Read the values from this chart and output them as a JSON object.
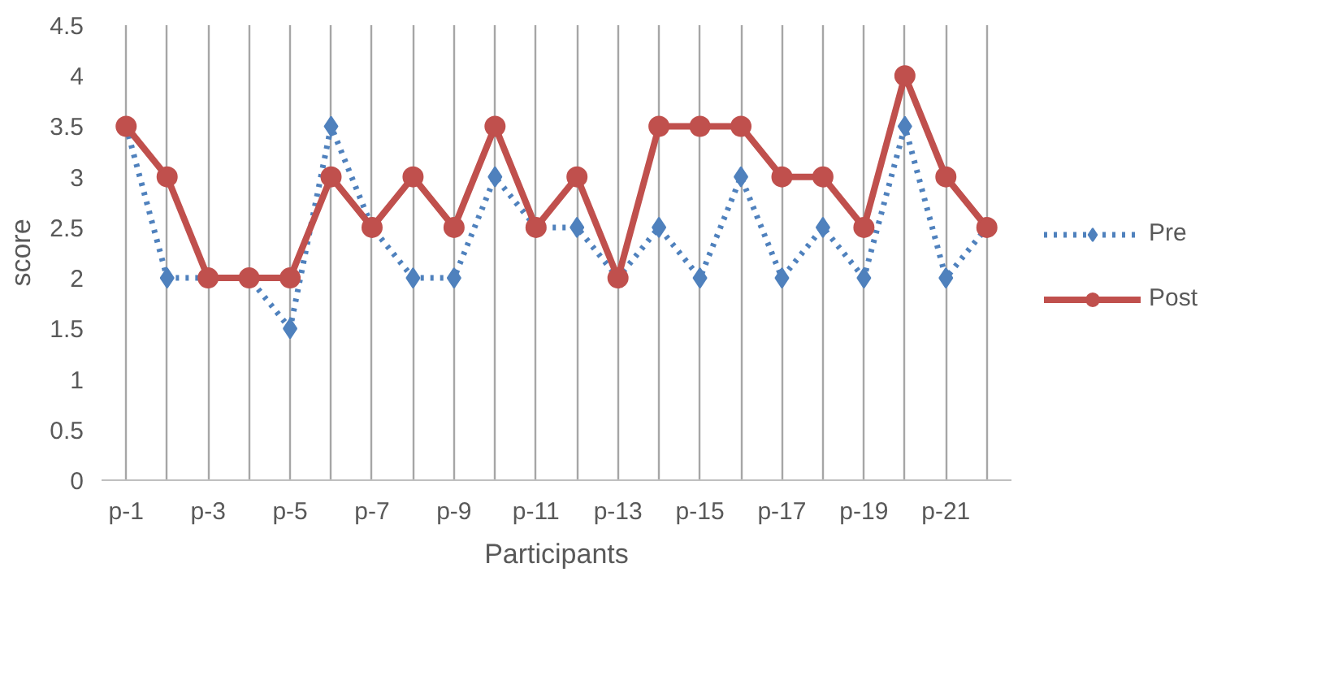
{
  "chart_data": {
    "type": "line",
    "xlabel": "Participants",
    "ylabel": "score",
    "categories": [
      "p-1",
      null,
      "p-3",
      null,
      "p-5",
      null,
      "p-7",
      null,
      "p-9",
      null,
      "p-11",
      null,
      "p-13",
      null,
      "p-15",
      null,
      "p-17",
      null,
      "p-19",
      null,
      "p-21",
      null
    ],
    "series": [
      {
        "name": "Pre",
        "color": "#4f81bd",
        "marker": "diamond",
        "line_style": "dotted",
        "values": [
          3.5,
          2,
          2,
          2,
          1.5,
          3.5,
          2.5,
          2,
          2,
          3,
          2.5,
          2.5,
          2,
          2.5,
          2,
          3,
          2,
          2.5,
          2,
          3.5,
          2,
          2.5
        ]
      },
      {
        "name": "Post",
        "color": "#c0504d",
        "marker": "circle",
        "line_style": "solid",
        "values": [
          3.5,
          3,
          2,
          2,
          2,
          3,
          2.5,
          3,
          2.5,
          3.5,
          2.5,
          3,
          2,
          3.5,
          3.5,
          3.5,
          3,
          3,
          2.5,
          4,
          3,
          2.5
        ]
      }
    ],
    "ylim": [
      0,
      4.5
    ],
    "yticks": [
      0,
      0.5,
      1,
      1.5,
      2,
      2.5,
      3,
      3.5,
      4,
      4.5
    ],
    "legend": "right",
    "grid": "x"
  }
}
